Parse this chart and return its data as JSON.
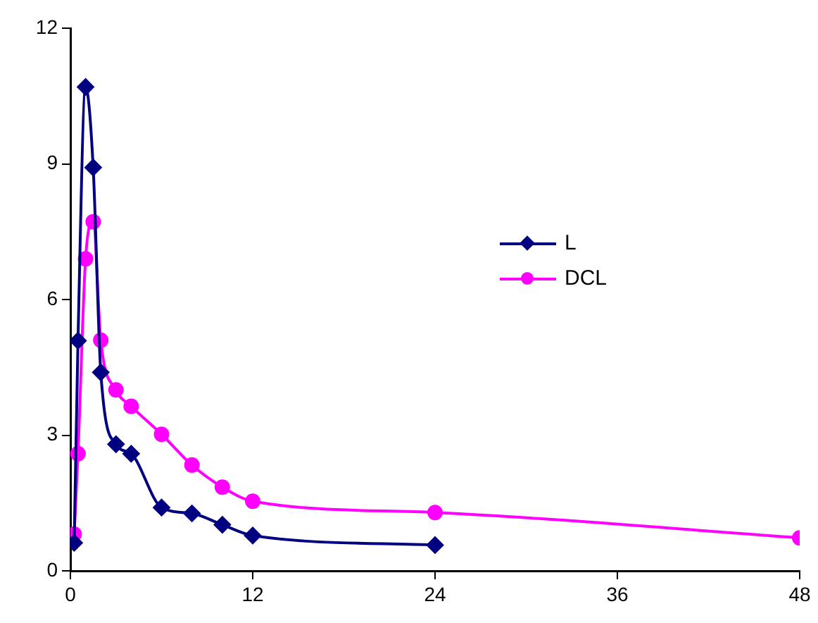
{
  "chart_data": {
    "type": "line",
    "x": [
      0.25,
      0.5,
      1,
      1.5,
      2,
      3,
      4,
      6,
      8,
      10,
      12,
      24
    ],
    "series": [
      {
        "name": "L",
        "color": "#000080",
        "marker": "diamond",
        "values": [
          0.62,
          5.09,
          10.7,
          8.92,
          4.39,
          2.8,
          2.59,
          1.4,
          1.27,
          1.02,
          0.78,
          0.57
        ]
      },
      {
        "name": "DCL",
        "color": "#ff00ff",
        "marker": "circle",
        "x": [
          0.25,
          0.5,
          1,
          1.5,
          2,
          3,
          4,
          6,
          8,
          10,
          12,
          24,
          48
        ],
        "values": [
          0.81,
          2.59,
          6.9,
          7.72,
          5.1,
          4.0,
          3.64,
          3.02,
          2.34,
          1.85,
          1.54,
          1.29,
          0.73
        ]
      }
    ],
    "xlim": [
      0,
      48
    ],
    "xticks": [
      0,
      12,
      24,
      36,
      48
    ],
    "ylim": [
      0,
      12
    ],
    "yticks": [
      0,
      3,
      6,
      9,
      12
    ],
    "grid": false,
    "legend": "right"
  }
}
